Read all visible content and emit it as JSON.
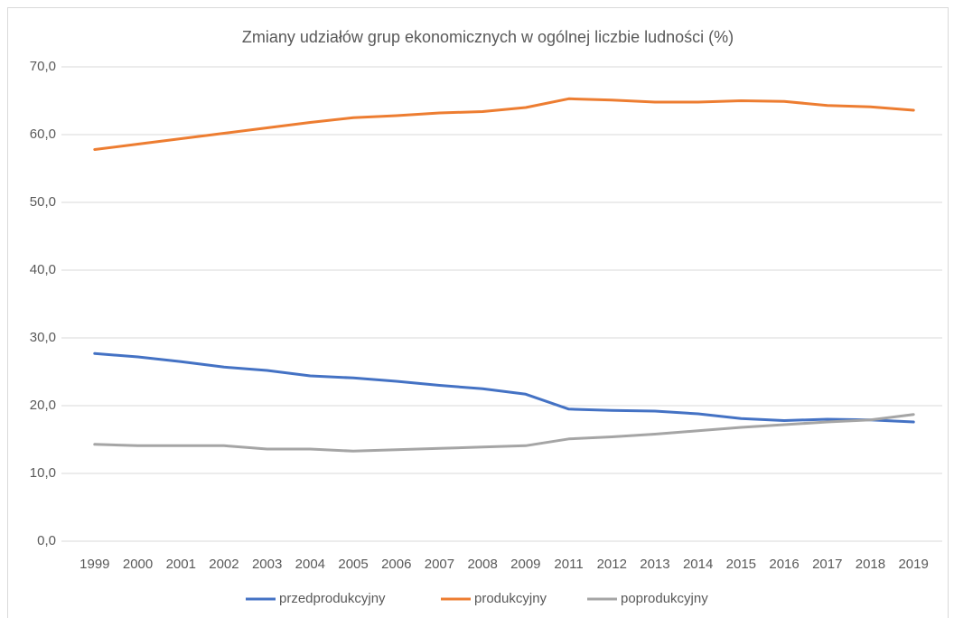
{
  "chart_data": {
    "type": "line",
    "title": "Zmiany udziałów grup ekonomicznych  w ogólnej liczbie ludności (%)",
    "categories": [
      "1999",
      "2000",
      "2001",
      "2002",
      "2003",
      "2004",
      "2005",
      "2006",
      "2007",
      "2008",
      "2009",
      "2011",
      "2012",
      "2013",
      "2014",
      "2015",
      "2016",
      "2017",
      "2018",
      "2019"
    ],
    "series": [
      {
        "name": "przedprodukcyjny",
        "color": "#4472c4",
        "values": [
          27.7,
          27.2,
          26.5,
          25.7,
          25.2,
          24.4,
          24.1,
          23.6,
          23.0,
          22.5,
          21.7,
          19.5,
          19.3,
          19.2,
          18.8,
          18.1,
          17.8,
          18.0,
          17.9,
          17.6
        ]
      },
      {
        "name": "produkcyjny",
        "color": "#ed7d31",
        "values": [
          57.8,
          58.6,
          59.4,
          60.2,
          61.0,
          61.8,
          62.5,
          62.8,
          63.2,
          63.4,
          64.0,
          65.3,
          65.1,
          64.8,
          64.8,
          65.0,
          64.9,
          64.3,
          64.1,
          63.6
        ]
      },
      {
        "name": "poprodukcyjny",
        "color": "#a5a5a5",
        "values": [
          14.3,
          14.1,
          14.1,
          14.1,
          13.6,
          13.6,
          13.3,
          13.5,
          13.7,
          13.9,
          14.1,
          15.1,
          15.4,
          15.8,
          16.3,
          16.8,
          17.2,
          17.6,
          17.9,
          18.7
        ]
      }
    ],
    "ylim": [
      0,
      70
    ],
    "yticks": [
      {
        "value": 0,
        "label": "0,0"
      },
      {
        "value": 10,
        "label": "10,0"
      },
      {
        "value": 20,
        "label": "20,0"
      },
      {
        "value": 30,
        "label": "30,0"
      },
      {
        "value": 40,
        "label": "40,0"
      },
      {
        "value": 50,
        "label": "50,0"
      },
      {
        "value": 60,
        "label": "60,0"
      },
      {
        "value": 70,
        "label": "70,0"
      }
    ],
    "grid": true,
    "legend": "bottom"
  }
}
